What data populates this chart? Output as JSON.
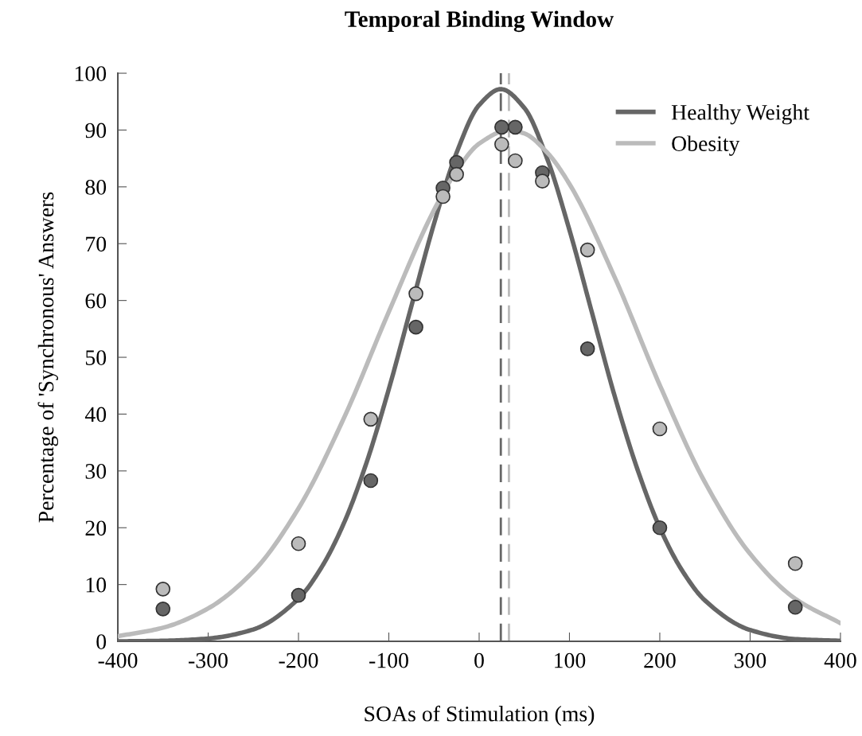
{
  "chart_data": {
    "type": "scatter",
    "title": "Temporal Binding Window",
    "xlabel": "SOAs of Stimulation (ms)",
    "ylabel": "Percentage of 'Synchronous' Answers",
    "xlim": [
      -400,
      400
    ],
    "xticks": [
      -400,
      -300,
      -200,
      -100,
      0,
      100,
      200,
      300,
      400
    ],
    "ylim": [
      0,
      100
    ],
    "yticks": [
      0,
      10,
      20,
      30,
      40,
      50,
      60,
      70,
      80,
      90,
      100
    ],
    "grid": false,
    "legend": "top right",
    "series": [
      {
        "type": "line",
        "name": "Healthy Weight",
        "color": "#666666",
        "marker": "none",
        "x": [
          -400,
          -350,
          -300,
          -250,
          -200,
          -175,
          -150,
          -125,
          -100,
          -75,
          -50,
          -25,
          0,
          24,
          50,
          75,
          100,
          125,
          150,
          175,
          200,
          225,
          250,
          300,
          350,
          400
        ],
        "values": [
          0.0,
          0.1,
          0.5,
          2.1,
          7.5,
          12.9,
          20.7,
          31.3,
          44.4,
          59.0,
          73.5,
          86.0,
          94.4,
          97.2,
          93.9,
          85.1,
          72.4,
          57.8,
          43.2,
          30.4,
          20.0,
          12.4,
          7.2,
          2.0,
          0.4,
          0.1
        ]
      },
      {
        "type": "line",
        "name": "Obesity",
        "color": "#bbbbbb",
        "marker": "none",
        "x": [
          -400,
          -350,
          -300,
          -250,
          -200,
          -150,
          -100,
          -50,
          -25,
          0,
          33,
          50,
          75,
          100,
          150,
          200,
          250,
          300,
          350,
          400
        ],
        "values": [
          0.9,
          2.4,
          5.8,
          12.3,
          23.4,
          39.2,
          58.0,
          75.9,
          82.8,
          87.6,
          90.0,
          89.4,
          86.1,
          80.5,
          64.1,
          45.1,
          28.0,
          15.4,
          7.5,
          3.2
        ]
      },
      {
        "color": "#666666",
        "marker": "circle",
        "x": [
          -350,
          -200,
          -120,
          -70,
          -40,
          -25,
          25,
          40,
          70,
          120,
          200,
          350
        ],
        "values": [
          5.7,
          8.1,
          28.3,
          55.3,
          79.8,
          84.3,
          90.5,
          90.5,
          82.5,
          51.5,
          20.0,
          6.0
        ]
      },
      {
        "color": "#bbbbbb",
        "marker": "circle",
        "x": [
          -350,
          -200,
          -120,
          -70,
          -40,
          -25,
          25,
          40,
          70,
          120,
          200,
          350
        ],
        "values": [
          9.2,
          17.2,
          39.1,
          61.2,
          78.3,
          82.2,
          87.5,
          84.6,
          81.0,
          68.9,
          37.4,
          13.7
        ]
      }
    ],
    "ref_lines": [
      {
        "axis": "x",
        "value": 24,
        "color": "#666666",
        "line_style": "dashed"
      },
      {
        "axis": "x",
        "value": 33,
        "color": "#bbbbbb",
        "line_style": "dashed"
      }
    ]
  }
}
